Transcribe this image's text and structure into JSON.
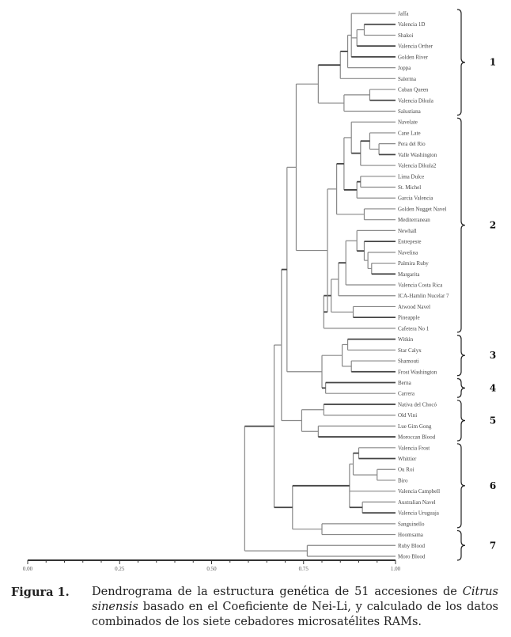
{
  "chart_data": {
    "type": "dendrogram",
    "title": "",
    "xlabel": "Coeficiente de Nei-Li",
    "xlim": [
      0.0,
      1.0
    ],
    "x_ticks": [
      "0.00",
      "0.25",
      "0.50",
      "0.75",
      "1.00"
    ],
    "x_tick_values": [
      0.0,
      0.25,
      0.5,
      0.75,
      1.0
    ],
    "grid": false,
    "leaves": [
      "Jaffa",
      "Valencia 1D",
      "Shakoi",
      "Valencia Orther",
      "Golden River",
      "Joppa",
      "Salerma",
      "Cuban Queen",
      "Valencia Dikula",
      "Salustiana",
      "Navelate",
      "Cane Late",
      "Pera del Rio",
      "Valle Washington",
      "Valencia Dikula2",
      "Lima Dulce",
      "St. Michel",
      "Garcia Valencia",
      "Golden Nugget Navel",
      "Mediterranean",
      "Newhall",
      "Entrepeste",
      "Navelina",
      "Palmira Ruby",
      "Margarita",
      "Valencia Costa Rica",
      "ICA-Hamlin Nucelar 7",
      "Atwood Navel",
      "Pineapple",
      "Cafetera No 1",
      "Witkin",
      "Star Calyx",
      "Shamouti",
      "Frost Washington",
      "Berna",
      "Carrera",
      "Nativa del Chocó",
      "Old Vini",
      "Lue Gim Gong",
      "Moroccan Blood",
      "Valencia Frost",
      "Whittier",
      "Ou Roi",
      "Biro",
      "Valencia Campbell",
      "Australian Navel",
      "Valencia Uruguaja",
      "Sanguinello",
      "Hoomsama",
      "Ruby Blood",
      "Moro Blood"
    ],
    "tree": {
      "s": 0.59,
      "c": [
        {
          "s": 0.67,
          "c": [
            {
              "s": 0.69,
              "c": [
                {
                  "s": 0.705,
                  "c": [
                    {
                      "s": 0.73,
                      "c": [
                        {
                          "s": 0.79,
                          "c": [
                            {
                              "s": 0.85,
                              "c": [
                                {
                                  "s": 0.87,
                                  "c": [
                                    {
                                      "s": 0.88,
                                      "c": [
                                        0,
                                        {
                                          "s": 0.895,
                                          "c": [
                                            {
                                              "s": 0.915,
                                              "c": [
                                                1,
                                                2
                                              ]
                                            },
                                            3
                                          ]
                                        },
                                        4
                                      ]
                                    },
                                    5
                                  ]
                                },
                                6
                              ]
                            },
                            {
                              "s": 0.86,
                              "c": [
                                {
                                  "s": 0.93,
                                  "c": [
                                    7,
                                    8
                                  ]
                                },
                                9
                              ]
                            }
                          ]
                        },
                        {
                          "s": 0.815,
                          "c": [
                            {
                              "s": 0.84,
                              "c": [
                                {
                                  "s": 0.86,
                                  "c": [
                                    {
                                      "s": 0.88,
                                      "c": [
                                        10,
                                        {
                                          "s": 0.905,
                                          "c": [
                                            {
                                              "s": 0.93,
                                              "c": [
                                                11,
                                                {
                                                  "s": 0.955,
                                                  "c": [
                                                    12,
                                                    13
                                                  ]
                                                }
                                              ]
                                            },
                                            14
                                          ]
                                        }
                                      ]
                                    },
                                    {
                                      "s": 0.895,
                                      "c": [
                                        {
                                          "s": 0.905,
                                          "c": [
                                            15,
                                            16
                                          ]
                                        },
                                        17
                                      ]
                                    }
                                  ]
                                },
                                {
                                  "s": 0.915,
                                  "c": [
                                    18,
                                    19
                                  ]
                                }
                              ]
                            },
                            {
                              "s": 0.805,
                              "c": [
                                {
                                  "s": 0.825,
                                  "c": [
                                    {
                                      "s": 0.845,
                                      "c": [
                                        {
                                          "s": 0.865,
                                          "c": [
                                            {
                                              "s": 0.895,
                                              "c": [
                                                20,
                                                {
                                                  "s": 0.915,
                                                  "c": [
                                                    21,
                                                    {
                                                      "s": 0.925,
                                                      "c": [
                                                        22,
                                                        {
                                                          "s": 0.935,
                                                          "c": [
                                                            23,
                                                            24
                                                          ]
                                                        }
                                                      ]
                                                    }
                                                  ]
                                                }
                                              ]
                                            },
                                            25
                                          ]
                                        },
                                        26
                                      ]
                                    },
                                    {
                                      "s": 0.885,
                                      "c": [
                                        27,
                                        28
                                      ]
                                    }
                                  ]
                                },
                                29
                              ]
                            }
                          ]
                        }
                      ]
                    },
                    {
                      "s": 0.8,
                      "c": [
                        {
                          "s": 0.855,
                          "c": [
                            {
                              "s": 0.87,
                              "c": [
                                30,
                                31
                              ]
                            },
                            {
                              "s": 0.88,
                              "c": [
                                32,
                                33
                              ]
                            }
                          ]
                        },
                        {
                          "s": 0.81,
                          "c": [
                            34,
                            35
                          ]
                        }
                      ]
                    }
                  ]
                },
                {
                  "s": 0.745,
                  "c": [
                    {
                      "s": 0.805,
                      "c": [
                        36,
                        37
                      ]
                    },
                    {
                      "s": 0.79,
                      "c": [
                        38,
                        39
                      ]
                    }
                  ]
                }
              ]
            },
            {
              "s": 0.72,
              "c": [
                {
                  "s": 0.875,
                  "c": [
                    {
                      "s": 0.885,
                      "c": [
                        {
                          "s": 0.9,
                          "c": [
                            40,
                            41
                          ]
                        },
                        {
                          "s": 0.95,
                          "c": [
                            42,
                            43
                          ]
                        }
                      ]
                    },
                    44,
                    {
                      "s": 0.91,
                      "c": [
                        45,
                        46
                      ]
                    }
                  ]
                },
                {
                  "s": 0.8,
                  "c": [
                    47,
                    48
                  ]
                }
              ]
            }
          ]
        },
        {
          "s": 0.76,
          "c": [
            49,
            50
          ]
        }
      ]
    },
    "groups": [
      {
        "label": "1",
        "first_leaf": 0,
        "last_leaf": 9
      },
      {
        "label": "2",
        "first_leaf": 10,
        "last_leaf": 29
      },
      {
        "label": "3",
        "first_leaf": 30,
        "last_leaf": 33
      },
      {
        "label": "4",
        "first_leaf": 34,
        "last_leaf": 35
      },
      {
        "label": "5",
        "first_leaf": 36,
        "last_leaf": 39
      },
      {
        "label": "6",
        "first_leaf": 40,
        "last_leaf": 47
      },
      {
        "label": "7",
        "first_leaf": 48,
        "last_leaf": 50
      }
    ]
  },
  "caption": {
    "lead": "Figura 1.",
    "text_1": "Dendrograma de la estructura genética de 51 accesiones de ",
    "italic_1": "Citrus sinensis",
    "text_2": " basado en el Coeficiente de Nei-Li, y calculado de los datos combinados de los siete cebadores microsatélites RAMs."
  },
  "colors": {
    "branch": "#888888",
    "branch_dark": "#444444",
    "axis": "#333333",
    "text": "#222222"
  }
}
